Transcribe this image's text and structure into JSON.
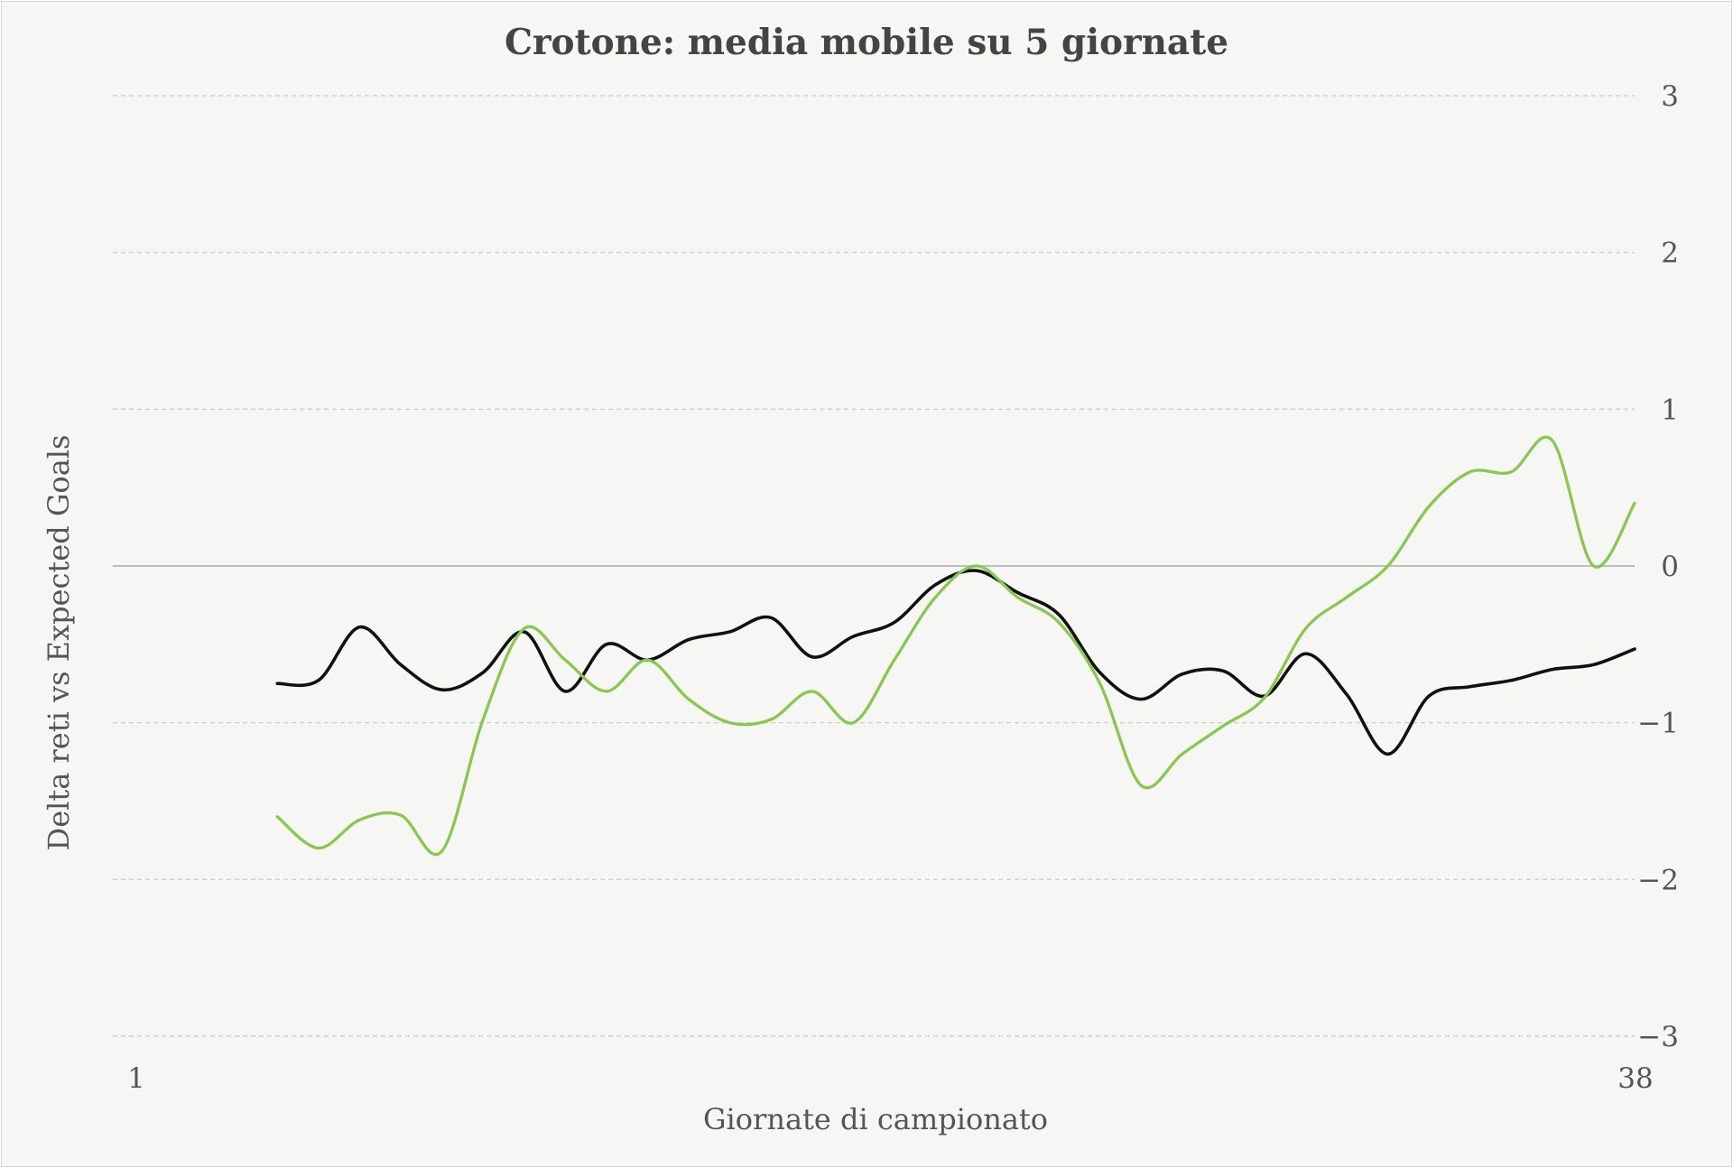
{
  "chart_data": {
    "type": "line",
    "title": "Crotone: media mobile su 5 giornate",
    "xlabel": "Giornate di campionato",
    "ylabel": "Delta reti vs Expected Goals",
    "xlim": [
      1,
      38
    ],
    "ylim": [
      -3,
      3
    ],
    "x_ticks": [
      "1",
      "38"
    ],
    "y_ticks": [
      3,
      2,
      1,
      0,
      -1,
      -2,
      -3
    ],
    "grid": true,
    "y_axis_side": "right",
    "x": [
      5,
      6,
      7,
      8,
      9,
      10,
      11,
      12,
      13,
      14,
      15,
      16,
      17,
      18,
      19,
      20,
      21,
      22,
      23,
      24,
      25,
      26,
      27,
      28,
      29,
      30,
      31,
      32,
      33,
      34,
      35,
      36,
      37,
      38
    ],
    "series": [
      {
        "color": "#111111",
        "values": [
          -0.75,
          -0.73,
          -0.39,
          -0.63,
          -0.79,
          -0.68,
          -0.42,
          -0.8,
          -0.5,
          -0.6,
          -0.47,
          -0.42,
          -0.33,
          -0.58,
          -0.45,
          -0.36,
          -0.12,
          -0.03,
          -0.17,
          -0.31,
          -0.68,
          -0.85,
          -0.69,
          -0.67,
          -0.83,
          -0.56,
          -0.82,
          -1.2,
          -0.83,
          -0.77,
          -0.73,
          -0.66,
          -0.63,
          -0.53
        ]
      },
      {
        "color": "#88c94c",
        "values": [
          -1.6,
          -1.8,
          -1.62,
          -1.59,
          -1.82,
          -0.98,
          -0.4,
          -0.6,
          -0.8,
          -0.6,
          -0.85,
          -1.0,
          -0.98,
          -0.8,
          -1.0,
          -0.6,
          -0.2,
          0.0,
          -0.2,
          -0.36,
          -0.75,
          -1.4,
          -1.2,
          -1.02,
          -0.84,
          -0.4,
          -0.2,
          0.0,
          0.38,
          0.6,
          0.6,
          0.8,
          0.0,
          0.4
        ]
      }
    ]
  }
}
